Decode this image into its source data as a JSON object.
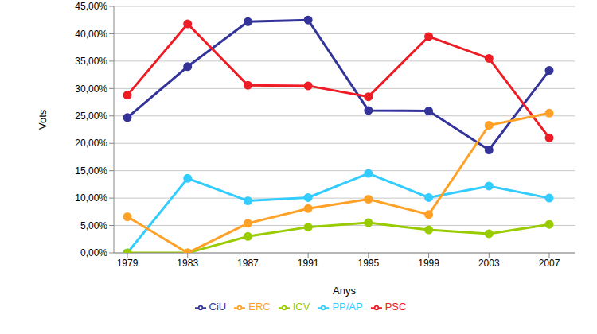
{
  "chart_data": {
    "type": "line",
    "x_label": "Anys",
    "y_label": "Vots",
    "categories": [
      "1979",
      "1983",
      "1987",
      "1991",
      "1995",
      "1999",
      "2003",
      "2007"
    ],
    "series": [
      {
        "name": "CiU",
        "color": "#333399",
        "values": [
          24.7,
          34.0,
          42.2,
          42.5,
          26.0,
          25.9,
          18.8,
          33.3
        ]
      },
      {
        "name": "PSC",
        "color": "#ee1c25",
        "values": [
          28.8,
          41.8,
          30.6,
          30.5,
          28.5,
          39.5,
          35.5,
          21.0
        ]
      },
      {
        "name": "PP/AP",
        "color": "#33ccff",
        "values": [
          0,
          13.6,
          9.5,
          10.1,
          14.5,
          10.1,
          12.2,
          10.0
        ]
      },
      {
        "name": "ICV",
        "color": "#99cc00",
        "values": [
          0,
          0,
          3.0,
          4.7,
          5.5,
          4.2,
          3.5,
          5.2
        ]
      },
      {
        "name": "ERC",
        "color": "#ffa126",
        "values": [
          6.6,
          0,
          5.4,
          8.1,
          9.8,
          7.0,
          23.3,
          25.5
        ]
      }
    ],
    "ylim": [
      0,
      45
    ],
    "yticks": [
      {
        "value": 0,
        "label": "0,00%"
      },
      {
        "value": 5,
        "label": "5,00%"
      },
      {
        "value": 10,
        "label": "10,00%"
      },
      {
        "value": 15,
        "label": "15,00%"
      },
      {
        "value": 20,
        "label": "20,00%"
      },
      {
        "value": 25,
        "label": "25,00%"
      },
      {
        "value": 30,
        "label": "30,00%"
      },
      {
        "value": 35,
        "label": "35,00%"
      },
      {
        "value": 40,
        "label": "40,00%"
      },
      {
        "value": 45,
        "label": "45,00%"
      }
    ],
    "grid": true,
    "legend": "bottom",
    "marker": "circle",
    "line_style": "solid"
  }
}
